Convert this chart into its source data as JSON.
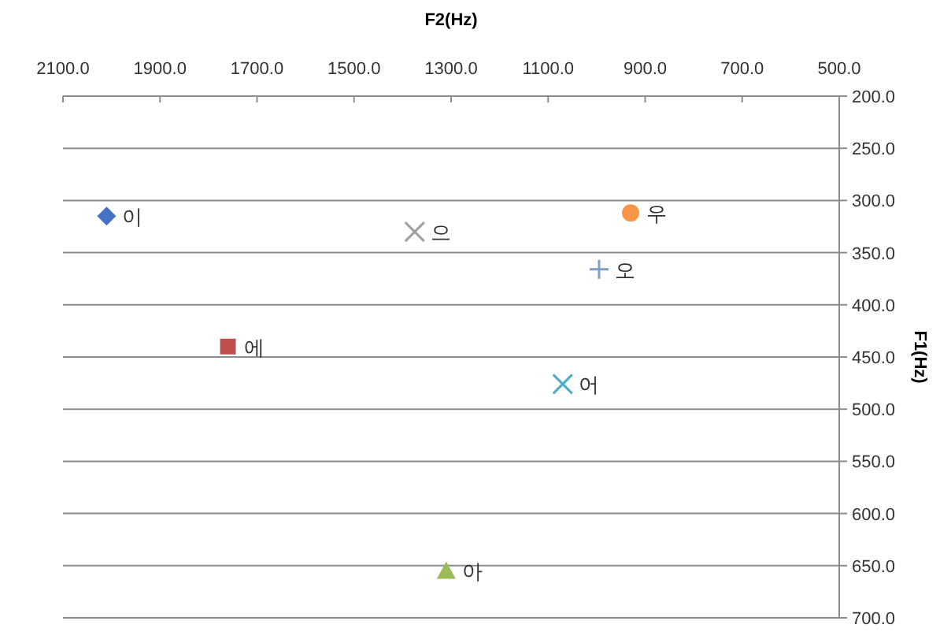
{
  "chart_data": {
    "type": "scatter",
    "xlabel": "F2(Hz)",
    "ylabel": "F1(Hz)",
    "grid": "y",
    "legend": false,
    "xlim": [
      2100,
      500
    ],
    "ylim": [
      700,
      200
    ],
    "xticks": [
      {
        "value": 2100,
        "label": "2100.0"
      },
      {
        "value": 1900,
        "label": "1900.0"
      },
      {
        "value": 1700,
        "label": "1700.0"
      },
      {
        "value": 1500,
        "label": "1500.0"
      },
      {
        "value": 1300,
        "label": "1300.0"
      },
      {
        "value": 1100,
        "label": "1100.0"
      },
      {
        "value": 900,
        "label": "900.0"
      },
      {
        "value": 700,
        "label": "700.0"
      },
      {
        "value": 500,
        "label": "500.0"
      }
    ],
    "yticks": [
      {
        "value": 200,
        "label": "200.0"
      },
      {
        "value": 250,
        "label": "250.0"
      },
      {
        "value": 300,
        "label": "300.0"
      },
      {
        "value": 350,
        "label": "350.0"
      },
      {
        "value": 400,
        "label": "400.0"
      },
      {
        "value": 450,
        "label": "450.0"
      },
      {
        "value": 500,
        "label": "500.0"
      },
      {
        "value": 550,
        "label": "550.0"
      },
      {
        "value": 600,
        "label": "600.0"
      },
      {
        "value": 650,
        "label": "650.0"
      },
      {
        "value": 700,
        "label": "700.0"
      }
    ],
    "series": [
      {
        "name": "이",
        "color": "#4472c4",
        "marker": "diamond",
        "x": [
          2010
        ],
        "values": [
          315
        ]
      },
      {
        "name": "에",
        "color": "#c0504d",
        "marker": "square",
        "x": [
          1760
        ],
        "values": [
          440
        ]
      },
      {
        "name": "아",
        "color": "#9bbb59",
        "marker": "triangle",
        "x": [
          1310
        ],
        "values": [
          655
        ]
      },
      {
        "name": "으",
        "color": "#a0a0a0",
        "marker": "cross",
        "x": [
          1375
        ],
        "values": [
          330
        ]
      },
      {
        "name": "우",
        "color": "#f79646",
        "marker": "circle",
        "x": [
          930
        ],
        "values": [
          312
        ]
      },
      {
        "name": "오",
        "color": "#7f9fc6",
        "marker": "plus",
        "x": [
          995
        ],
        "values": [
          366
        ]
      },
      {
        "name": "어",
        "color": "#4bacc6",
        "marker": "cross",
        "x": [
          1070
        ],
        "values": [
          476
        ]
      }
    ]
  }
}
